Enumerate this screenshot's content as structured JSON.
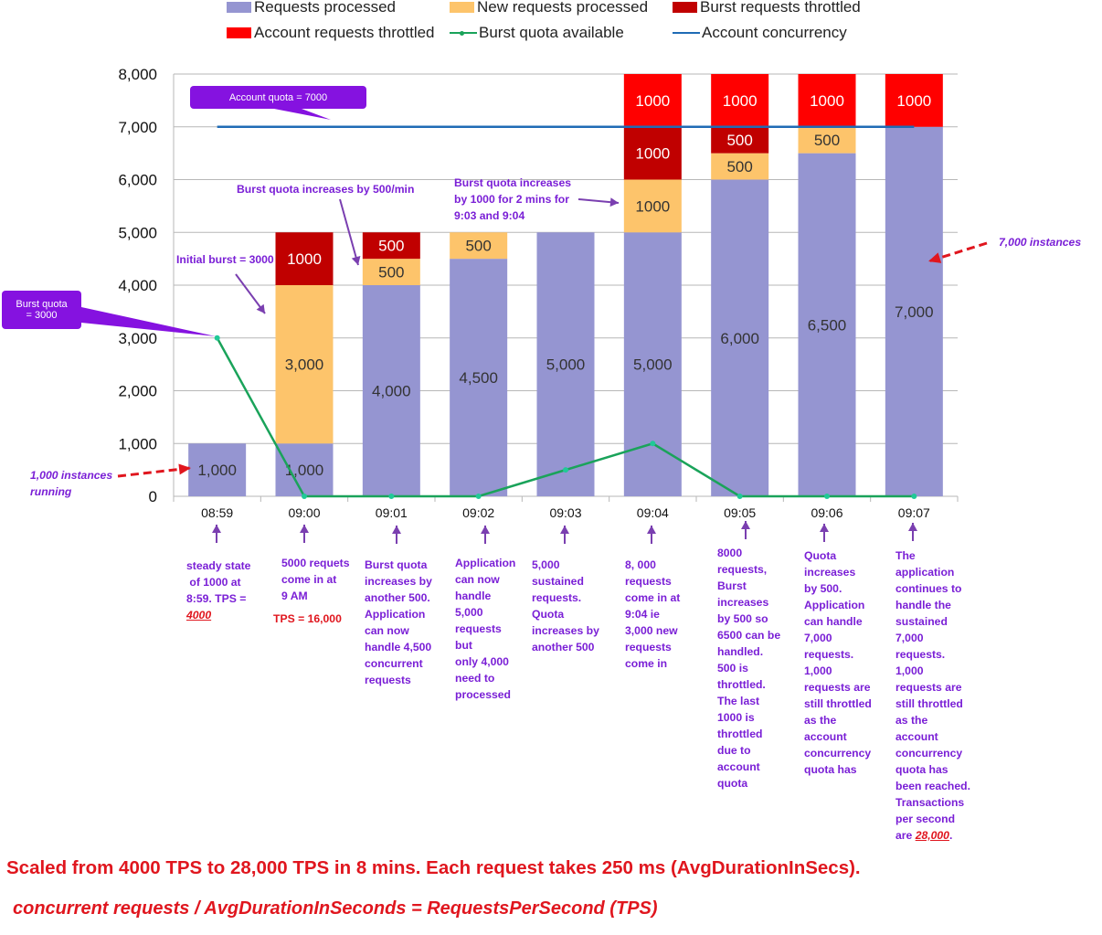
{
  "chart_data": {
    "type": "bar",
    "stacked": true,
    "categories": [
      "08:59",
      "09:00",
      "09:01",
      "09:02",
      "09:03",
      "09:04",
      "09:05",
      "09:06",
      "09:07"
    ],
    "ylim": [
      0,
      8000
    ],
    "yticks": [
      "0",
      "1,000",
      "2,000",
      "3,000",
      "4,000",
      "5,000",
      "6,000",
      "7,000",
      "8,000"
    ],
    "grid": true,
    "legend_position": "top",
    "series": [
      {
        "name": "Requests processed",
        "color": "#9595d1",
        "values": [
          1000,
          1000,
          4000,
          4500,
          5000,
          5000,
          6000,
          6500,
          7000
        ],
        "labels": [
          "1,000",
          "1,000",
          "4,000",
          "4,500",
          "5,000",
          "5,000",
          "6,000",
          "6,500",
          "7,000"
        ]
      },
      {
        "name": "New requests processed",
        "color": "#fdc46b",
        "values": [
          0,
          3000,
          500,
          500,
          0,
          1000,
          500,
          500,
          0
        ],
        "labels": [
          "",
          "3,000",
          "500",
          "500",
          "",
          "1000",
          "500",
          "500",
          ""
        ]
      },
      {
        "name": "Burst requests throttled",
        "color": "#c00000",
        "values": [
          0,
          1000,
          500,
          0,
          0,
          1000,
          500,
          0,
          0
        ],
        "labels": [
          "",
          "1000",
          "500",
          "",
          "",
          "1000",
          "500",
          "",
          ""
        ]
      },
      {
        "name": "Account requests throttled",
        "color": "#ff0000",
        "values": [
          0,
          0,
          0,
          0,
          0,
          1000,
          1000,
          1000,
          1000
        ],
        "labels": [
          "",
          "",
          "",
          "",
          "",
          "1000",
          "1000",
          "1000",
          "1000"
        ]
      }
    ],
    "lines": [
      {
        "name": "Burst quota available",
        "color": "#1aa35a",
        "values": [
          3000,
          0,
          0,
          0,
          500,
          1000,
          0,
          0,
          0
        ]
      },
      {
        "name": "Account concurrency",
        "color": "#1f6bb5",
        "values": [
          7000,
          7000,
          7000,
          7000,
          7000,
          7000,
          7000,
          7000,
          7000
        ]
      }
    ]
  },
  "legend": {
    "requests_processed": "Requests processed",
    "new_requests_processed": "New requests processed",
    "burst_requests_throttled": "Burst requests throttled",
    "account_requests_throttled": "Account requests throttled",
    "burst_quota_available": "Burst quota available",
    "account_concurrency": "Account concurrency"
  },
  "annotations": {
    "account_quota": "Account quota = 7000",
    "burst_quota_callout": "Burst quota\n= 3000",
    "initial_burst": "Initial burst = 3000",
    "burst_increase_500": "Burst quota increases by 500/min",
    "burst_increase_1000": "Burst quota increases\nby 1000 for 2 mins for\n9:03 and 9:04",
    "seven_thousand_instances": "7,000 instances",
    "one_thousand_instances": "1,000 instances\nrunning"
  },
  "descriptions": {
    "d0859_text": "steady state\n of 1000 at\n8:59. TPS =",
    "d0859_tps": "4000",
    "d0900_text": "5000 requets\ncome in at\n9 AM",
    "d0900_tps": "TPS = 16,000",
    "d0901": "Burst quota\nincreases by\nanother 500.\nApplication\ncan now\nhandle 4,500\nconcurrent\nrequests",
    "d0902": "Application\ncan now\nhandle\n5,000\nrequests\nbut\nonly 4,000\nneed to\nprocessed",
    "d0903": "5,000\nsustained\nrequests.\nQuota\nincreases by\nanother 500",
    "d0904": "8, 000\nrequests\ncome in at\n9:04 ie\n3,000 new\nrequests\ncome in",
    "d0905": "8000\nrequests,\nBurst\nincreases\nby 500 so\n6500 can be\nhandled.\n500 is\nthrottled.\nThe last\n1000 is\nthrottled\ndue to\naccount\nquota",
    "d0906": "Quota\nincreases\nby 500.\nApplication\ncan handle\n7,000\nrequests.\n1,000\nrequests are\nstill throttled\nas the\naccount\nconcurrency\nquota has",
    "d0907_text": "The\napplication\ncontinues to\nhandle the\nsustained\n7,000\nrequests.\n1,000\nrequests are\nstill throttled\nas the\naccount\nconcurrency\nquota has\nbeen reached.\nTransactions\nper second\nare ",
    "d0907_tps": "28,000",
    "d0907_end": "."
  },
  "footer": {
    "line1": "Scaled from 4000 TPS to 28,000 TPS in 8 mins. Each request takes 250 ms (AvgDurationInSecs).",
    "line2": "concurrent requests / AvgDurationInSeconds = RequestsPerSecond (TPS)"
  }
}
